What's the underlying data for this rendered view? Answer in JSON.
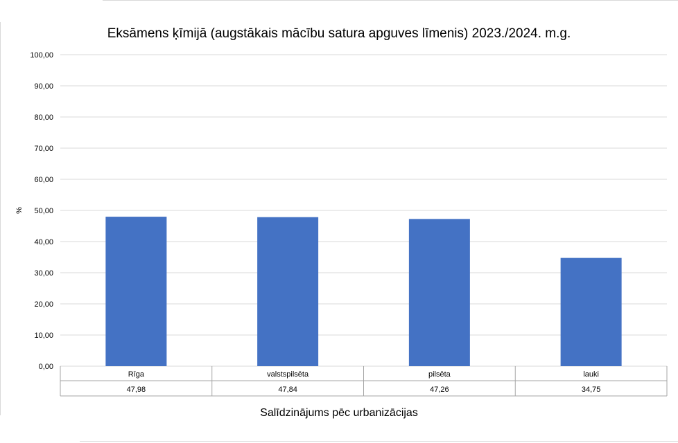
{
  "chart_data": {
    "type": "bar",
    "title": "Eksāmens ķīmijā (augstākais mācību satura apguves līmenis) 2023./2024. m.g.",
    "xlabel": "Salīdzinājums pēc urbanizācijas",
    "ylabel": "%",
    "ylim": [
      0,
      100
    ],
    "yticks": [
      "0,00",
      "10,00",
      "20,00",
      "30,00",
      "40,00",
      "50,00",
      "60,00",
      "70,00",
      "80,00",
      "90,00",
      "100,00"
    ],
    "categories": [
      "Rīga",
      "valstspilsēta",
      "pilsēta",
      "lauki"
    ],
    "values": [
      47.98,
      47.84,
      47.26,
      34.75
    ],
    "value_labels": [
      "47,98",
      "47,84",
      "47,26",
      "34,75"
    ],
    "grid": true,
    "legend": "none",
    "data_table": true,
    "bar_color": "#4472c4"
  }
}
